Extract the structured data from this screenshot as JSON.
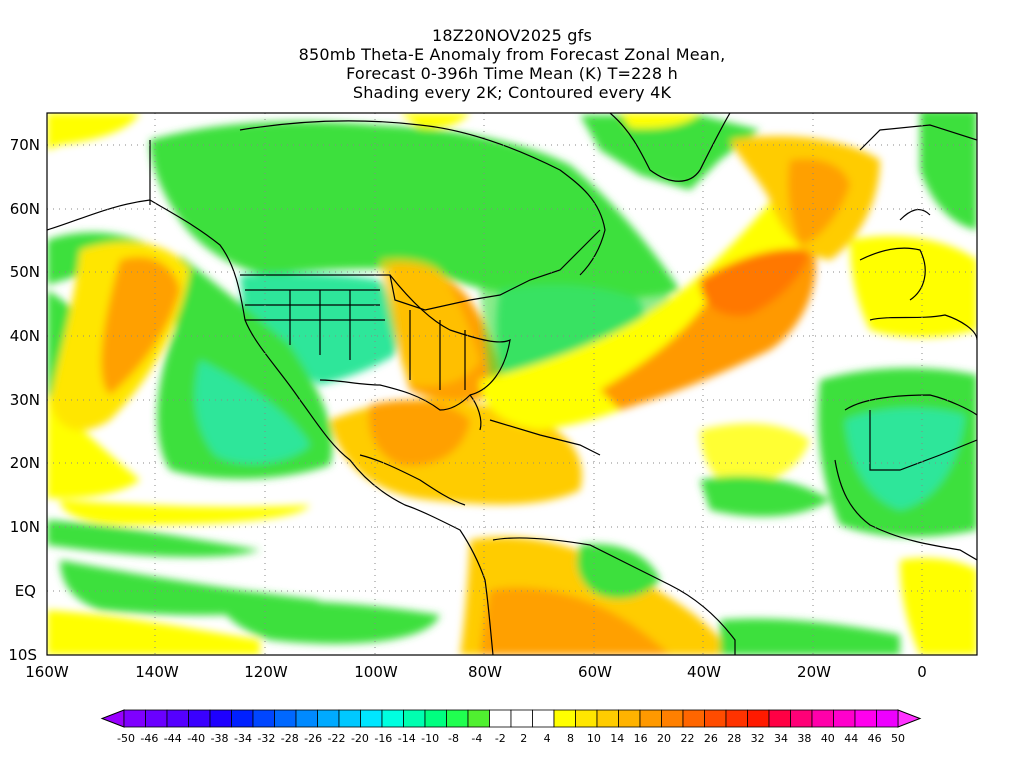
{
  "title": {
    "line1": "18Z20NOV2025 gfs",
    "line2": "850mb Theta-E Anomaly from Forecast Zonal Mean,",
    "line3": "Forecast 0-396h Time Mean (K) T=228 h",
    "line4": "Shading every 2K; Contoured every 4K"
  },
  "map": {
    "lat_labels": [
      "70N",
      "60N",
      "50N",
      "40N",
      "30N",
      "20N",
      "10N",
      "EQ",
      "10S"
    ],
    "lon_labels": [
      "160W",
      "140W",
      "120W",
      "100W",
      "80W",
      "60W",
      "40W",
      "20W",
      "0"
    ]
  },
  "colorbar": {
    "labels": [
      "-50",
      "-46",
      "-44",
      "-40",
      "-38",
      "-34",
      "-32",
      "-28",
      "-26",
      "-22",
      "-20",
      "-16",
      "-14",
      "-10",
      "-8",
      "-4",
      "-2",
      "2",
      "4",
      "8",
      "10",
      "14",
      "16",
      "20",
      "22",
      "26",
      "28",
      "32",
      "34",
      "38",
      "40",
      "44",
      "46",
      "50"
    ],
    "colors": [
      "#7f00ff",
      "#6a00ff",
      "#5500ff",
      "#3a00ff",
      "#1e00ff",
      "#0020ff",
      "#0046ff",
      "#0068ff",
      "#008aff",
      "#00aaff",
      "#00c8ff",
      "#00e6ff",
      "#00ffe0",
      "#00ffb0",
      "#00ff80",
      "#20ff50",
      "#50f030",
      "#ffffff",
      "#ffffff",
      "#ffffff",
      "#ffff00",
      "#ffe600",
      "#ffcc00",
      "#ffb300",
      "#ff9900",
      "#ff8000",
      "#ff6600",
      "#ff4c00",
      "#ff3300",
      "#ff1a00",
      "#ff0044",
      "#ff0077",
      "#ff00aa",
      "#ff00cc",
      "#ff00ee",
      "#ee00ff"
    ],
    "arrow_left_color": "#9900ff",
    "arrow_right_color": "#ff33ff"
  },
  "palette": {
    "green": "#3ee03e",
    "teal": "#2ee69a",
    "cyan": "#3cf0c0",
    "yellow": "#ffff00",
    "gold": "#ffd200",
    "orange": "#ffa000",
    "darkorange": "#ff7800",
    "red": "#ff5000"
  }
}
